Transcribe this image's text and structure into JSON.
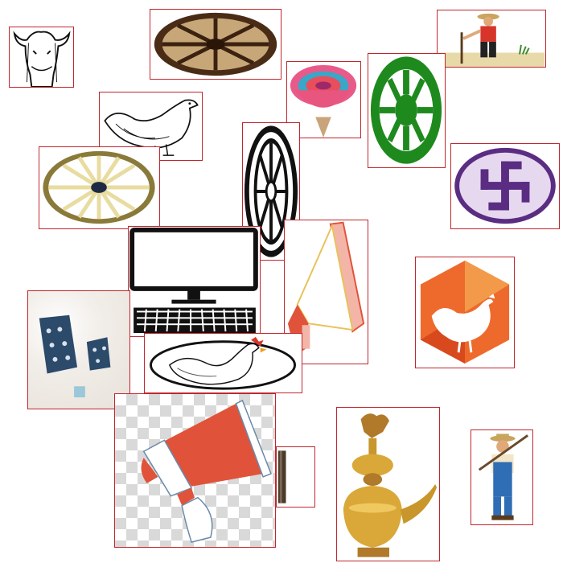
{
  "colors": {
    "box_border": "#c0272d",
    "wheel_brown": "#5a3519",
    "green": "#1e8a1e",
    "swastika_purple": "#5a2d82",
    "megaphone_orange": "#e0533a",
    "hen_orange": "#ee6a2c",
    "brass": "#c9962c",
    "farmer_blue": "#2f6db5"
  },
  "symbols": [
    {
      "icon": "cow-head-icon"
    },
    {
      "icon": "cart-wheel-brown-icon"
    },
    {
      "icon": "farmer-with-hoe-icon"
    },
    {
      "icon": "woven-basket-icon"
    },
    {
      "icon": "green-wheel-icon"
    },
    {
      "icon": "hen-sketch-icon"
    },
    {
      "icon": "swastika-emblem-icon"
    },
    {
      "icon": "wooden-wheel-icon"
    },
    {
      "icon": "black-wheel-icon"
    },
    {
      "icon": "computer-icon"
    },
    {
      "icon": "megaphone-icon"
    },
    {
      "icon": "hen-hexagon-icon"
    },
    {
      "icon": "cloth-bags-icon"
    },
    {
      "icon": "rooster-oval-icon"
    },
    {
      "icon": "megaphone-large-icon"
    },
    {
      "icon": "fragment-icon"
    },
    {
      "icon": "brass-pot-rooster-icon"
    },
    {
      "icon": "farmer-overalls-icon"
    }
  ]
}
